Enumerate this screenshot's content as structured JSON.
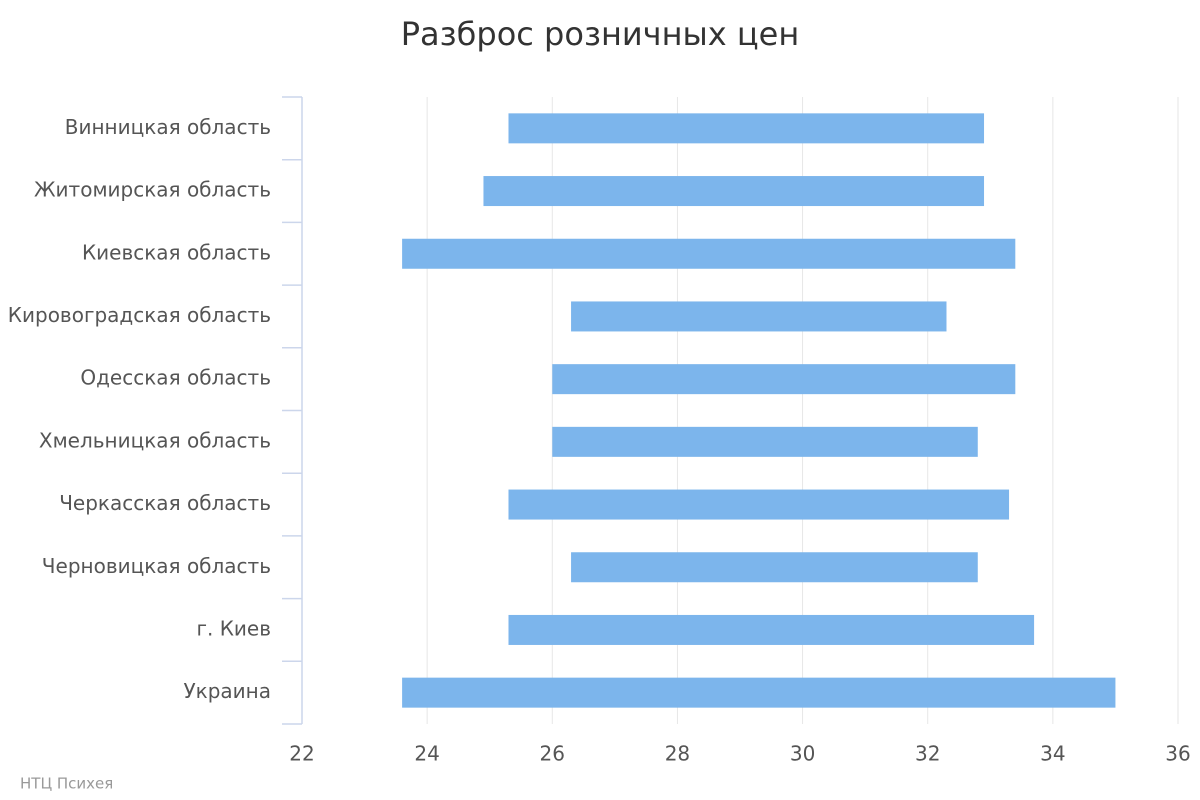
{
  "chart_data": {
    "type": "bar",
    "title": "Разброс розничных цен",
    "categories": [
      "Винницкая область",
      "Житомирская область",
      "Киевская область",
      "Кировоградская область",
      "Одесская область",
      "Хмельницкая область",
      "Черкасская область",
      "Черновицкая область",
      "г. Киев",
      "Украина"
    ],
    "low": [
      25.3,
      24.9,
      23.6,
      26.3,
      26.0,
      26.0,
      25.3,
      26.3,
      25.3,
      23.6
    ],
    "high": [
      32.9,
      32.9,
      33.4,
      32.3,
      33.4,
      32.8,
      33.3,
      32.8,
      33.7,
      35.0
    ],
    "color": "#7cb5ec",
    "xlim": [
      22,
      36
    ],
    "xticks": [
      22,
      24,
      26,
      28,
      30,
      32,
      34,
      36
    ],
    "grid": true,
    "credit": "НТЦ Психея"
  }
}
